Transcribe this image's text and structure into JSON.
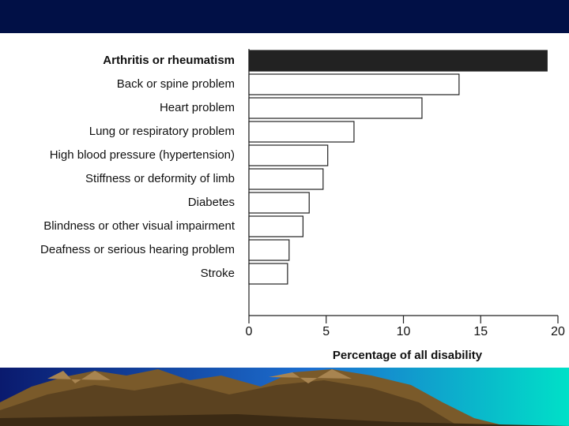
{
  "chart_data": {
    "type": "bar",
    "orientation": "horizontal",
    "categories": [
      "Arthritis or rheumatism",
      "Back or spine problem",
      "Heart problem",
      "Lung or respiratory problem",
      "High blood pressure (hypertension)",
      "Stiffness or deformity of limb",
      "Diabetes",
      "Blindness or other visual impairment",
      "Deafness or serious hearing problem",
      "Stroke"
    ],
    "values": [
      19.3,
      13.6,
      11.2,
      6.8,
      5.1,
      4.8,
      3.9,
      3.5,
      2.6,
      2.5
    ],
    "colors": [
      "#222222",
      "#ffffff",
      "#ffffff",
      "#ffffff",
      "#ffffff",
      "#ffffff",
      "#ffffff",
      "#ffffff",
      "#ffffff",
      "#ffffff"
    ],
    "x_label": "Percentage of all disability",
    "xlim": [
      0,
      20
    ],
    "xticks": [
      0,
      5,
      10,
      15,
      20
    ],
    "grid": false
  }
}
